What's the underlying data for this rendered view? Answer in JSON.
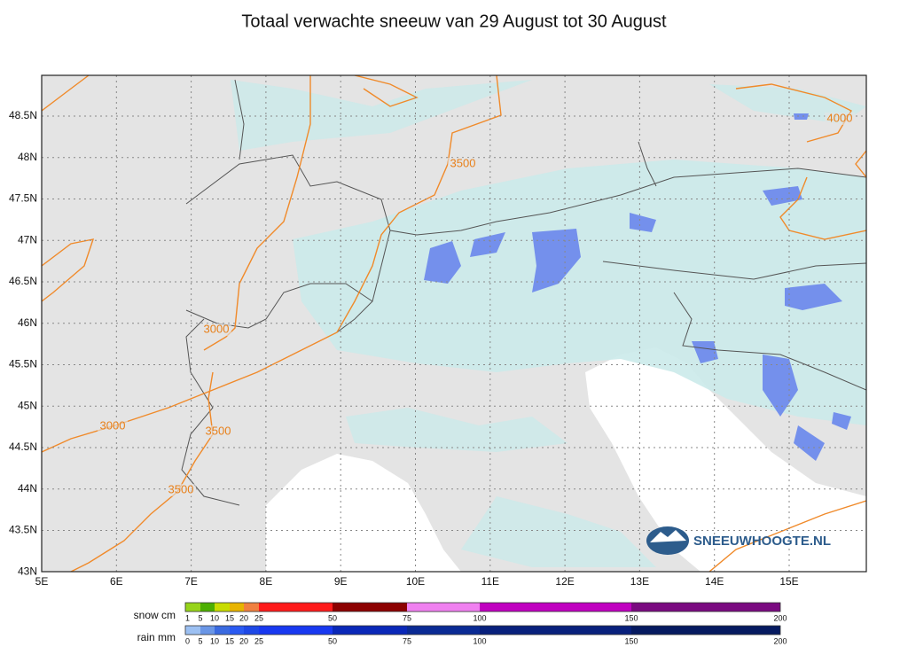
{
  "title": "Totaal verwachte sneeuw van 29 August tot 30 August",
  "map": {
    "lat_labels": [
      "48.5N",
      "48N",
      "47.5N",
      "47N",
      "46.5N",
      "46N",
      "45.5N",
      "45N",
      "44.5N",
      "44N",
      "43.5N",
      "43N"
    ],
    "lon_labels": [
      "5E",
      "6E",
      "7E",
      "8E",
      "9E",
      "10E",
      "11E",
      "12E",
      "13E",
      "14E",
      "15E"
    ],
    "contour_labels": [
      "3500",
      "3000",
      "3000",
      "3500",
      "3500",
      "4000"
    ],
    "logo": "SNEEUWHOOGTE.NL"
  },
  "legend": {
    "snow": {
      "label": "snow cm",
      "ticks": [
        "1",
        "5",
        "10",
        "15",
        "20",
        "25",
        "50",
        "75",
        "100",
        "150",
        "200"
      ]
    },
    "rain": {
      "label": "rain mm",
      "ticks": [
        "0",
        "5",
        "10",
        "15",
        "20",
        "25",
        "50",
        "75",
        "100",
        "150",
        "200"
      ]
    }
  }
}
